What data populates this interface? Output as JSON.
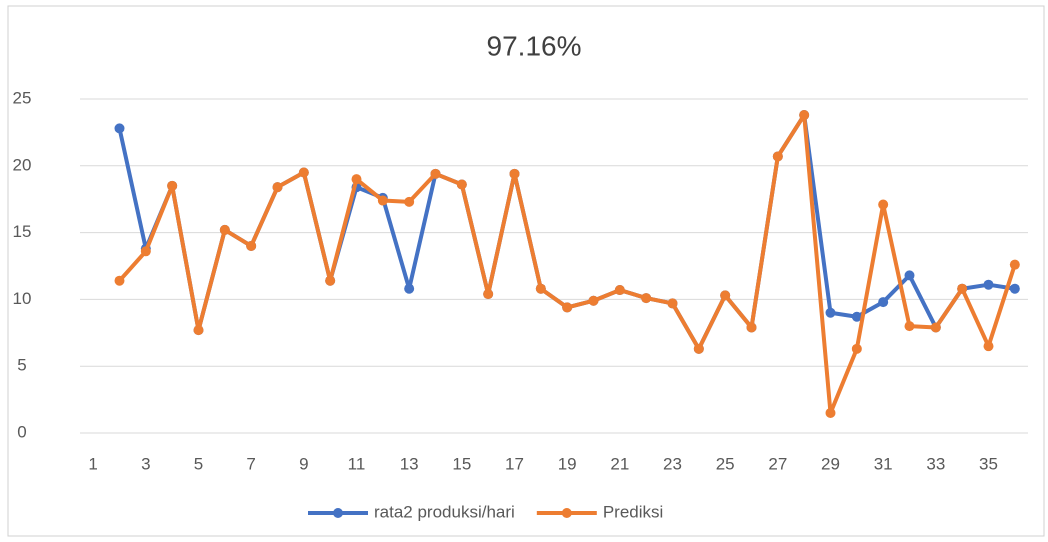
{
  "chart_data": {
    "type": "line",
    "title": "97.16%",
    "categories": [
      1,
      null,
      3,
      null,
      5,
      null,
      7,
      null,
      9,
      null,
      11,
      null,
      13,
      null,
      15,
      null,
      17,
      null,
      19,
      null,
      21,
      null,
      23,
      null,
      25,
      null,
      27,
      null,
      29,
      null,
      31,
      null,
      33,
      null,
      35,
      null
    ],
    "series": [
      {
        "name": "rata2 produksi/hari",
        "color": "#4472c4",
        "values": [
          null,
          22.8,
          13.8,
          18.5,
          7.7,
          15.2,
          14,
          18.4,
          19.5,
          11.4,
          18.4,
          17.6,
          10.8,
          19.4,
          18.6,
          10.4,
          19.4,
          10.8,
          9.4,
          9.9,
          10.7,
          10.1,
          9.7,
          6.3,
          10.3,
          7.9,
          20.7,
          23.8,
          9.0,
          8.7,
          9.8,
          11.8,
          7.9,
          10.8,
          11.1,
          10.8
        ]
      },
      {
        "name": "Prediksi",
        "color": "#ed7d31",
        "values": [
          null,
          11.4,
          13.6,
          18.5,
          7.7,
          15.2,
          14,
          18.4,
          19.5,
          11.4,
          19.0,
          17.4,
          17.3,
          19.4,
          18.6,
          10.4,
          19.4,
          10.8,
          9.4,
          9.9,
          10.7,
          10.1,
          9.7,
          6.3,
          10.3,
          7.9,
          20.7,
          23.8,
          1.5,
          6.3,
          17.1,
          8.0,
          7.9,
          10.8,
          6.5,
          12.6
        ]
      }
    ],
    "ylim": [
      0,
      25
    ],
    "yticks": [
      0,
      5,
      10,
      15,
      20,
      25
    ],
    "grid": true,
    "legend": "bottom"
  }
}
